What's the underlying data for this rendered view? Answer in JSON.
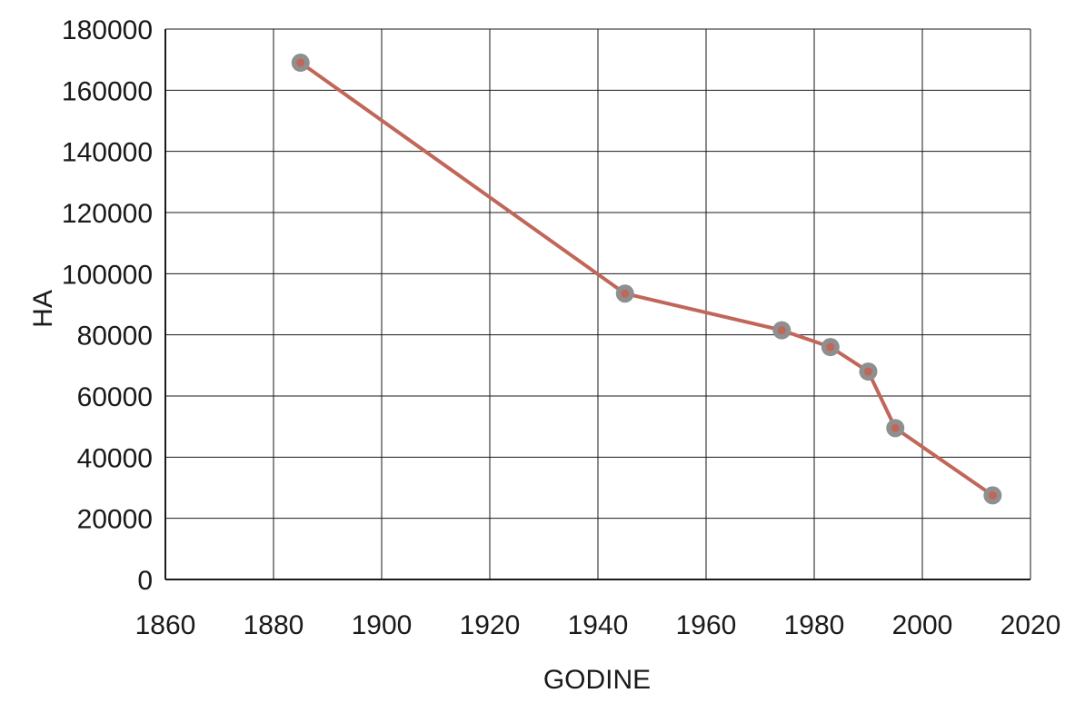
{
  "chart_data": {
    "type": "line",
    "xlabel": "GODINE",
    "ylabel": "HA",
    "xlim": [
      1860,
      2020
    ],
    "ylim": [
      0,
      180000
    ],
    "x_ticks": [
      1860,
      1880,
      1900,
      1920,
      1940,
      1960,
      1980,
      2000,
      2020
    ],
    "y_ticks": [
      0,
      20000,
      40000,
      60000,
      80000,
      100000,
      120000,
      140000,
      160000,
      180000
    ],
    "grid": true,
    "series": [
      {
        "x": [
          1885,
          1945,
          1974,
          1983,
          1990,
          1995,
          2013
        ],
        "y": [
          169000,
          93500,
          81500,
          76000,
          68000,
          49500,
          27500
        ],
        "line_color": "#c0675a",
        "marker_color": "#8f8f8f",
        "marker_center_color": "#c0675a"
      }
    ]
  }
}
